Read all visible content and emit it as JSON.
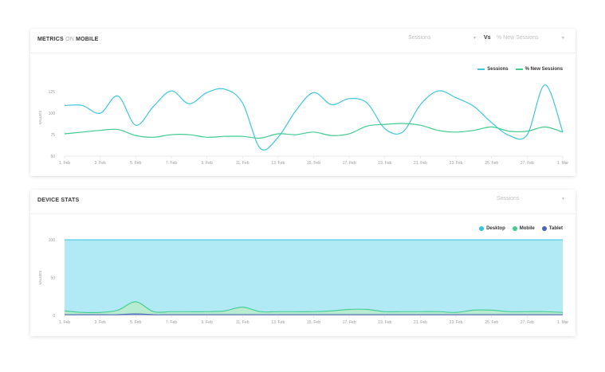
{
  "cards": {
    "metrics": {
      "title_a": "METRICS",
      "title_b": "ON",
      "title_c": "MOBILE",
      "select_left": "Sessions",
      "vs_label": "Vs",
      "select_right": "% New Sessions"
    },
    "device": {
      "title": "DEVICE STATS",
      "select": "Sessions"
    }
  },
  "chart_data": [
    {
      "type": "line",
      "title": "",
      "ylabel": "VALUES",
      "xlabel": "",
      "ylim": [
        50,
        140
      ],
      "yticks": [
        50,
        75,
        100,
        125
      ],
      "grid": false,
      "legend_position": "top-right",
      "x_tick_labels": [
        "1. Feb",
        "3. Feb",
        "5. Feb",
        "7. Feb",
        "9. Feb",
        "11. Feb",
        "13. Feb",
        "15. Feb",
        "17. Feb",
        "19. Feb",
        "21. Feb",
        "23. Feb",
        "25. Feb",
        "27. Feb",
        "1. Mar"
      ],
      "series": [
        {
          "name": "Sessions",
          "color": "#3ec6de",
          "x": [
            0,
            1,
            2,
            3,
            4,
            5,
            6,
            7,
            8,
            9,
            10,
            11,
            12,
            13,
            14,
            15,
            16,
            17,
            18,
            19,
            20,
            21,
            22,
            23,
            24,
            25,
            26,
            27,
            28
          ],
          "values": [
            109,
            109,
            100,
            120,
            86,
            108,
            126,
            111,
            124,
            128,
            112,
            59,
            72,
            103,
            124,
            110,
            117,
            112,
            82,
            78,
            110,
            126,
            118,
            108,
            89,
            74,
            75,
            133,
            78
          ]
        },
        {
          "name": "% New Sessions",
          "color": "#3ecc8f",
          "x": [
            0,
            1,
            2,
            3,
            4,
            5,
            6,
            7,
            8,
            9,
            10,
            11,
            12,
            13,
            14,
            15,
            16,
            17,
            18,
            19,
            20,
            21,
            22,
            23,
            24,
            25,
            26,
            27,
            28
          ],
          "values": [
            76,
            78,
            80,
            81,
            74,
            72,
            75,
            75,
            72,
            73,
            73,
            71,
            76,
            75,
            78,
            74,
            76,
            85,
            87,
            88,
            86,
            80,
            78,
            80,
            84,
            79,
            79,
            84,
            78
          ]
        }
      ]
    },
    {
      "type": "area",
      "title": "",
      "ylabel": "VALUES",
      "xlabel": "",
      "ylim": [
        0,
        100
      ],
      "yticks": [
        0,
        50,
        100
      ],
      "grid": false,
      "legend_position": "top-right",
      "x_tick_labels": [
        "1. Feb",
        "3. Feb",
        "5. Feb",
        "7. Feb",
        "9. Feb",
        "11. Feb",
        "13. Feb",
        "15. Feb",
        "17. Feb",
        "19. Feb",
        "21. Feb",
        "23. Feb",
        "25. Feb",
        "27. Feb",
        "1. Mar"
      ],
      "series": [
        {
          "name": "Desktop",
          "color": "#2ec4e2",
          "fill": "#b1e9f5",
          "x": [
            0,
            1,
            2,
            3,
            4,
            5,
            6,
            7,
            8,
            9,
            10,
            11,
            12,
            13,
            14,
            15,
            16,
            17,
            18,
            19,
            20,
            21,
            22,
            23,
            24,
            25,
            26,
            27,
            28
          ],
          "values": [
            100,
            100,
            100,
            100,
            100,
            100,
            100,
            100,
            100,
            100,
            100,
            100,
            100,
            100,
            100,
            100,
            100,
            100,
            100,
            100,
            100,
            100,
            100,
            100,
            100,
            100,
            100,
            100,
            100
          ]
        },
        {
          "name": "Mobile",
          "color": "#3ecc8f",
          "fill": "#b8ebcf",
          "x": [
            0,
            1,
            2,
            3,
            4,
            5,
            6,
            7,
            8,
            9,
            10,
            11,
            12,
            13,
            14,
            15,
            16,
            17,
            18,
            19,
            20,
            21,
            22,
            23,
            24,
            25,
            26,
            27,
            28
          ],
          "values": [
            6,
            4,
            4,
            7,
            18,
            5,
            5,
            5,
            5,
            6,
            11,
            5,
            5,
            5,
            5,
            6,
            8,
            8,
            5,
            5,
            5,
            5,
            4,
            7,
            7,
            5,
            5,
            5,
            4
          ]
        },
        {
          "name": "Tablet",
          "color": "#4a64b5",
          "fill": "#8fa0d6",
          "x": [
            0,
            1,
            2,
            3,
            4,
            5,
            6,
            7,
            8,
            9,
            10,
            11,
            12,
            13,
            14,
            15,
            16,
            17,
            18,
            19,
            20,
            21,
            22,
            23,
            24,
            25,
            26,
            27,
            28
          ],
          "values": [
            1,
            1,
            1,
            1,
            2,
            1,
            1,
            1,
            1,
            1,
            1,
            1,
            1,
            1,
            1,
            1,
            1,
            1,
            1,
            1,
            1,
            1,
            1,
            1,
            1,
            1,
            1,
            1,
            1
          ]
        }
      ]
    }
  ]
}
